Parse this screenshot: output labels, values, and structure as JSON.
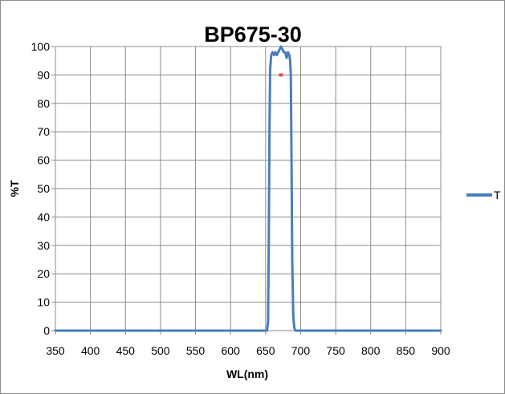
{
  "chart_data": {
    "type": "line",
    "title": "BP675-30",
    "xlabel": "WL(nm)",
    "ylabel": "%T",
    "xlim": [
      350,
      900
    ],
    "ylim": [
      0,
      100
    ],
    "x_ticks": [
      350,
      400,
      450,
      500,
      550,
      600,
      650,
      700,
      750,
      800,
      850,
      900
    ],
    "y_ticks": [
      0,
      10,
      20,
      30,
      40,
      50,
      60,
      70,
      80,
      90,
      100
    ],
    "grid": true,
    "legend_position": "right",
    "series": [
      {
        "name": "T",
        "color": "#4a7ebb",
        "x": [
          350,
          400,
          450,
          500,
          550,
          600,
          640,
          652,
          653.5,
          654.5,
          655.5,
          656.5,
          658,
          660,
          662,
          664,
          666,
          668,
          670,
          672,
          674,
          676,
          678,
          680,
          682,
          684,
          685,
          686,
          687,
          688,
          689.5,
          691,
          692.5,
          700,
          750,
          800,
          850,
          900
        ],
        "y": [
          0,
          0,
          0,
          0,
          0,
          0,
          0,
          0,
          3,
          30,
          70,
          92,
          97,
          98,
          97,
          98,
          97,
          98,
          99,
          100,
          99,
          98,
          98,
          96,
          98,
          97,
          95,
          90,
          60,
          25,
          5,
          1,
          0,
          0,
          0,
          0,
          0,
          0
        ]
      }
    ],
    "markers": [
      {
        "x": 672,
        "y": 90,
        "color": "#d9534f"
      }
    ]
  }
}
